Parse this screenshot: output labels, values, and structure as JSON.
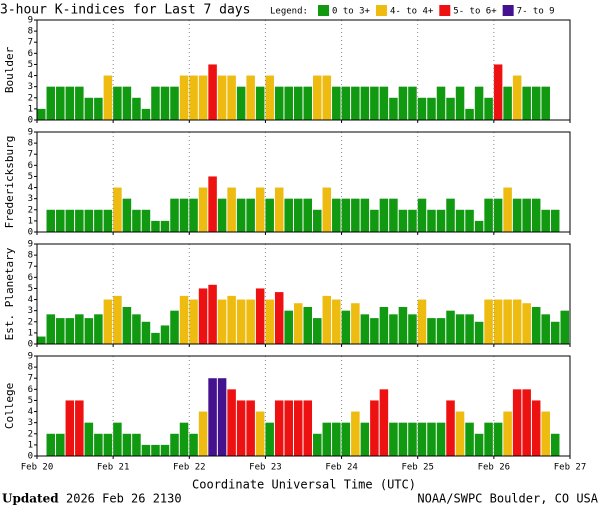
{
  "title": "3-hour K-indices for Last 7 days",
  "legend": {
    "label": "Legend:",
    "items": [
      {
        "label": "0 to 3+",
        "color": "#119911"
      },
      {
        "label": "4- to 4+",
        "color": "#eebb11"
      },
      {
        "label": "5- to 6+",
        "color": "#ee1111"
      },
      {
        "label": "7- to 9",
        "color": "#44118f"
      }
    ]
  },
  "x_axis": {
    "ticks": [
      "Feb 20",
      "Feb 21",
      "Feb 22",
      "Feb 23",
      "Feb 24",
      "Feb 25",
      "Feb 26",
      "Feb 27"
    ],
    "label": "Coordinate Universal Time (UTC)"
  },
  "footer": {
    "updated_label": "Updated",
    "updated_time": "2026 Feb 26 2130",
    "source": "NOAA/SWPC Boulder, CO USA"
  },
  "chart_data": [
    {
      "type": "bar",
      "ylabel": "Boulder",
      "ylim": [
        0,
        9
      ],
      "yticks": [
        0,
        1,
        2,
        3,
        4,
        5,
        6,
        7,
        8,
        9
      ],
      "grid": true,
      "values": [
        1,
        3,
        3,
        3,
        3,
        2,
        2,
        4,
        3,
        3,
        2,
        1,
        3,
        3,
        3,
        4,
        4,
        4,
        5,
        4,
        4,
        3,
        4,
        3,
        4,
        3,
        3,
        3,
        3,
        4,
        4,
        3,
        3,
        3,
        3,
        3,
        3,
        2,
        3,
        3,
        2,
        2,
        3,
        2,
        3,
        1,
        3,
        2,
        5,
        3,
        4,
        3,
        3,
        3,
        0,
        0
      ]
    },
    {
      "type": "bar",
      "ylabel": "Fredericksburg",
      "ylim": [
        0,
        9
      ],
      "yticks": [
        0,
        1,
        2,
        3,
        4,
        5,
        6,
        7,
        8,
        9
      ],
      "grid": true,
      "values": [
        0,
        2,
        2,
        2,
        2,
        2,
        2,
        2,
        4,
        3,
        2,
        2,
        1,
        1,
        3,
        3,
        3,
        4,
        5,
        3,
        4,
        3,
        3,
        4,
        3,
        4,
        3,
        3,
        3,
        2,
        4,
        3,
        3,
        3,
        3,
        2,
        3,
        3,
        2,
        2,
        3,
        2,
        2,
        3,
        2,
        2,
        1,
        3,
        3,
        4,
        3,
        3,
        3,
        2,
        2,
        0
      ]
    },
    {
      "type": "bar",
      "ylabel": "Est. Planetary",
      "ylim": [
        0,
        9
      ],
      "yticks": [
        0,
        1,
        2,
        3,
        4,
        5,
        6,
        7,
        8,
        9
      ],
      "grid": true,
      "values": [
        0.67,
        2.67,
        2.33,
        2.33,
        2.67,
        2.33,
        2.67,
        4,
        4.33,
        3.33,
        2.67,
        2,
        1,
        1.67,
        3,
        4.33,
        4,
        5,
        5.33,
        4,
        4.33,
        4,
        4,
        5,
        4,
        4.67,
        3,
        3.67,
        3.33,
        2.33,
        4.33,
        4,
        3,
        3.67,
        2.67,
        2.33,
        3.33,
        2.67,
        3.33,
        2.67,
        4,
        2.33,
        2.33,
        3,
        2.67,
        2.67,
        2,
        4,
        4,
        4,
        4,
        3.67,
        3.33,
        2.67,
        2,
        3
      ]
    },
    {
      "type": "bar",
      "ylabel": "College",
      "ylim": [
        0,
        9
      ],
      "yticks": [
        0,
        1,
        2,
        3,
        4,
        5,
        6,
        7,
        8,
        9
      ],
      "grid": true,
      "values": [
        0,
        2,
        2,
        5,
        5,
        3,
        2,
        2,
        3,
        2,
        2,
        1,
        1,
        1,
        2,
        3,
        2,
        4,
        7,
        7,
        6,
        5,
        5,
        4,
        3,
        5,
        5,
        5,
        5,
        2,
        3,
        3,
        3,
        4,
        3,
        5,
        6,
        3,
        3,
        3,
        3,
        3,
        3,
        5,
        4,
        3,
        2,
        3,
        3,
        4,
        6,
        6,
        5,
        4,
        2,
        0
      ]
    }
  ]
}
